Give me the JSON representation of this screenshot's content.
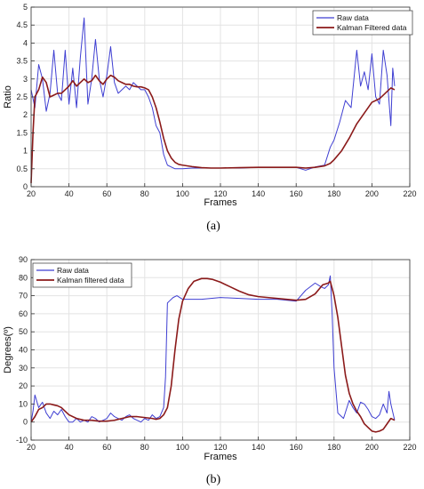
{
  "chart_data": [
    {
      "type": "line",
      "panel_label": "(a)",
      "xlabel": "Frames",
      "ylabel": "Ratio",
      "xlim": [
        20,
        220
      ],
      "ylim": [
        0,
        5
      ],
      "xticks": [
        20,
        40,
        60,
        80,
        100,
        120,
        140,
        160,
        180,
        200,
        220
      ],
      "yticks": [
        0,
        0.5,
        1,
        1.5,
        2,
        2.5,
        3,
        3.5,
        4,
        4.5,
        5
      ],
      "grid": true,
      "legend_position": "top-right",
      "colors": {
        "raw": "#3f3fd2",
        "kalman": "#8b1a1a"
      },
      "series": [
        {
          "name": "Raw data",
          "color": "#3f3fd2",
          "x": [
            20,
            22,
            24,
            26,
            28,
            30,
            32,
            34,
            36,
            38,
            40,
            42,
            44,
            46,
            48,
            50,
            52,
            54,
            56,
            58,
            60,
            62,
            64,
            66,
            68,
            70,
            72,
            74,
            76,
            78,
            80,
            82,
            84,
            86,
            88,
            90,
            92,
            94,
            96,
            98,
            100,
            105,
            110,
            115,
            120,
            130,
            140,
            150,
            160,
            165,
            170,
            175,
            178,
            180,
            183,
            186,
            189,
            192,
            194,
            196,
            198,
            200,
            202,
            204,
            206,
            208,
            210,
            211,
            212
          ],
          "y": [
            2.7,
            2.2,
            3.4,
            3.0,
            2.1,
            2.6,
            3.8,
            2.6,
            2.4,
            3.8,
            2.3,
            3.3,
            2.2,
            3.6,
            4.7,
            2.3,
            3.0,
            4.1,
            3.0,
            2.5,
            3.1,
            3.9,
            2.9,
            2.6,
            2.7,
            2.8,
            2.7,
            2.9,
            2.8,
            2.7,
            2.7,
            2.5,
            2.2,
            1.7,
            1.5,
            0.9,
            0.6,
            0.55,
            0.5,
            0.5,
            0.5,
            0.52,
            0.52,
            0.52,
            0.52,
            0.52,
            0.54,
            0.54,
            0.54,
            0.46,
            0.55,
            0.6,
            1.1,
            1.3,
            1.8,
            2.4,
            2.2,
            3.8,
            2.8,
            3.2,
            2.7,
            3.7,
            2.5,
            2.3,
            3.8,
            3.1,
            1.7,
            3.3,
            2.8
          ]
        },
        {
          "name": "Kalman Filtered data",
          "color": "#8b1a1a",
          "x": [
            20,
            21,
            22,
            24,
            26,
            28,
            30,
            32,
            34,
            36,
            38,
            40,
            42,
            44,
            46,
            48,
            50,
            52,
            54,
            56,
            58,
            60,
            62,
            64,
            66,
            68,
            70,
            72,
            74,
            76,
            78,
            80,
            82,
            84,
            86,
            88,
            90,
            92,
            94,
            96,
            98,
            100,
            105,
            110,
            115,
            120,
            130,
            140,
            150,
            160,
            165,
            170,
            175,
            178,
            180,
            184,
            188,
            192,
            196,
            200,
            204,
            208,
            210,
            212
          ],
          "y": [
            0.1,
            1.5,
            2.5,
            2.7,
            3.05,
            2.9,
            2.5,
            2.55,
            2.6,
            2.6,
            2.7,
            2.8,
            2.95,
            2.8,
            2.9,
            3.0,
            2.9,
            2.95,
            3.1,
            2.95,
            2.85,
            3.0,
            3.1,
            3.05,
            2.95,
            2.9,
            2.85,
            2.85,
            2.8,
            2.78,
            2.78,
            2.75,
            2.7,
            2.5,
            2.2,
            1.8,
            1.35,
            1.0,
            0.8,
            0.68,
            0.62,
            0.6,
            0.56,
            0.53,
            0.52,
            0.52,
            0.53,
            0.54,
            0.54,
            0.54,
            0.52,
            0.54,
            0.58,
            0.65,
            0.75,
            1.0,
            1.35,
            1.75,
            2.05,
            2.35,
            2.45,
            2.65,
            2.75,
            2.7
          ]
        }
      ]
    },
    {
      "type": "line",
      "panel_label": "(b)",
      "xlabel": "Frames",
      "ylabel": "Degrees(º)",
      "xlim": [
        20,
        220
      ],
      "ylim": [
        -10,
        90
      ],
      "xticks": [
        20,
        40,
        60,
        80,
        100,
        120,
        140,
        160,
        180,
        200,
        220
      ],
      "yticks": [
        -10,
        0,
        10,
        20,
        30,
        40,
        50,
        60,
        70,
        80,
        90
      ],
      "grid": true,
      "legend_position": "top-left",
      "colors": {
        "raw": "#3f3fd2",
        "kalman": "#8b1a1a"
      },
      "series": [
        {
          "name": "Raw data",
          "color": "#3f3fd2",
          "x": [
            20,
            21,
            22,
            24,
            26,
            28,
            30,
            32,
            34,
            36,
            38,
            40,
            42,
            44,
            46,
            48,
            50,
            52,
            54,
            56,
            58,
            60,
            62,
            64,
            66,
            68,
            70,
            72,
            74,
            76,
            78,
            80,
            82,
            84,
            86,
            88,
            90,
            91,
            92,
            93,
            95,
            97,
            100,
            105,
            110,
            115,
            120,
            130,
            140,
            150,
            160,
            165,
            170,
            173,
            175,
            177,
            178,
            179,
            180,
            182,
            185,
            188,
            190,
            192,
            194,
            196,
            198,
            200,
            202,
            204,
            206,
            208,
            209,
            210,
            212
          ],
          "y": [
            0,
            6,
            15,
            8,
            11,
            5,
            2,
            6,
            4,
            7,
            3,
            0,
            0,
            2,
            0,
            1,
            0,
            3,
            2,
            0,
            1,
            2,
            5,
            3,
            2,
            1,
            3,
            4,
            2,
            1,
            0,
            2,
            1,
            4,
            2,
            3,
            8,
            25,
            66,
            67,
            69,
            70,
            68,
            68,
            68,
            68.5,
            69,
            68.5,
            68,
            68,
            67,
            73,
            77,
            75,
            74,
            76,
            81,
            60,
            30,
            5,
            2,
            12,
            8,
            5,
            11,
            10,
            7,
            3,
            2,
            4,
            10,
            5,
            17,
            10,
            1
          ]
        },
        {
          "name": "Kalman filtered data",
          "color": "#8b1a1a",
          "x": [
            20,
            22,
            24,
            26,
            28,
            30,
            32,
            34,
            36,
            38,
            40,
            44,
            48,
            52,
            56,
            60,
            64,
            68,
            72,
            76,
            80,
            84,
            86,
            88,
            90,
            92,
            94,
            96,
            98,
            100,
            103,
            106,
            110,
            113,
            116,
            120,
            125,
            130,
            135,
            140,
            145,
            150,
            155,
            160,
            165,
            170,
            174,
            177,
            178,
            180,
            182,
            184,
            186,
            188,
            190,
            192,
            194,
            196,
            198,
            200,
            202,
            204,
            206,
            208,
            210,
            212
          ],
          "y": [
            0,
            3,
            7,
            8,
            10,
            10,
            9.5,
            9,
            8,
            6,
            4,
            2,
            1,
            1,
            0.5,
            0.5,
            1,
            2,
            3,
            3,
            2.5,
            2,
            1.5,
            2,
            4,
            8,
            20,
            40,
            57,
            67,
            74,
            78,
            79.5,
            79.5,
            79,
            77.5,
            75,
            72.5,
            70.5,
            69.5,
            69,
            68.5,
            68,
            67.5,
            68,
            71,
            76,
            77,
            78,
            70,
            58,
            42,
            26,
            16,
            10,
            6,
            3,
            -1,
            -3,
            -5,
            -5.5,
            -5,
            -4,
            -1,
            2,
            1
          ]
        }
      ]
    }
  ]
}
